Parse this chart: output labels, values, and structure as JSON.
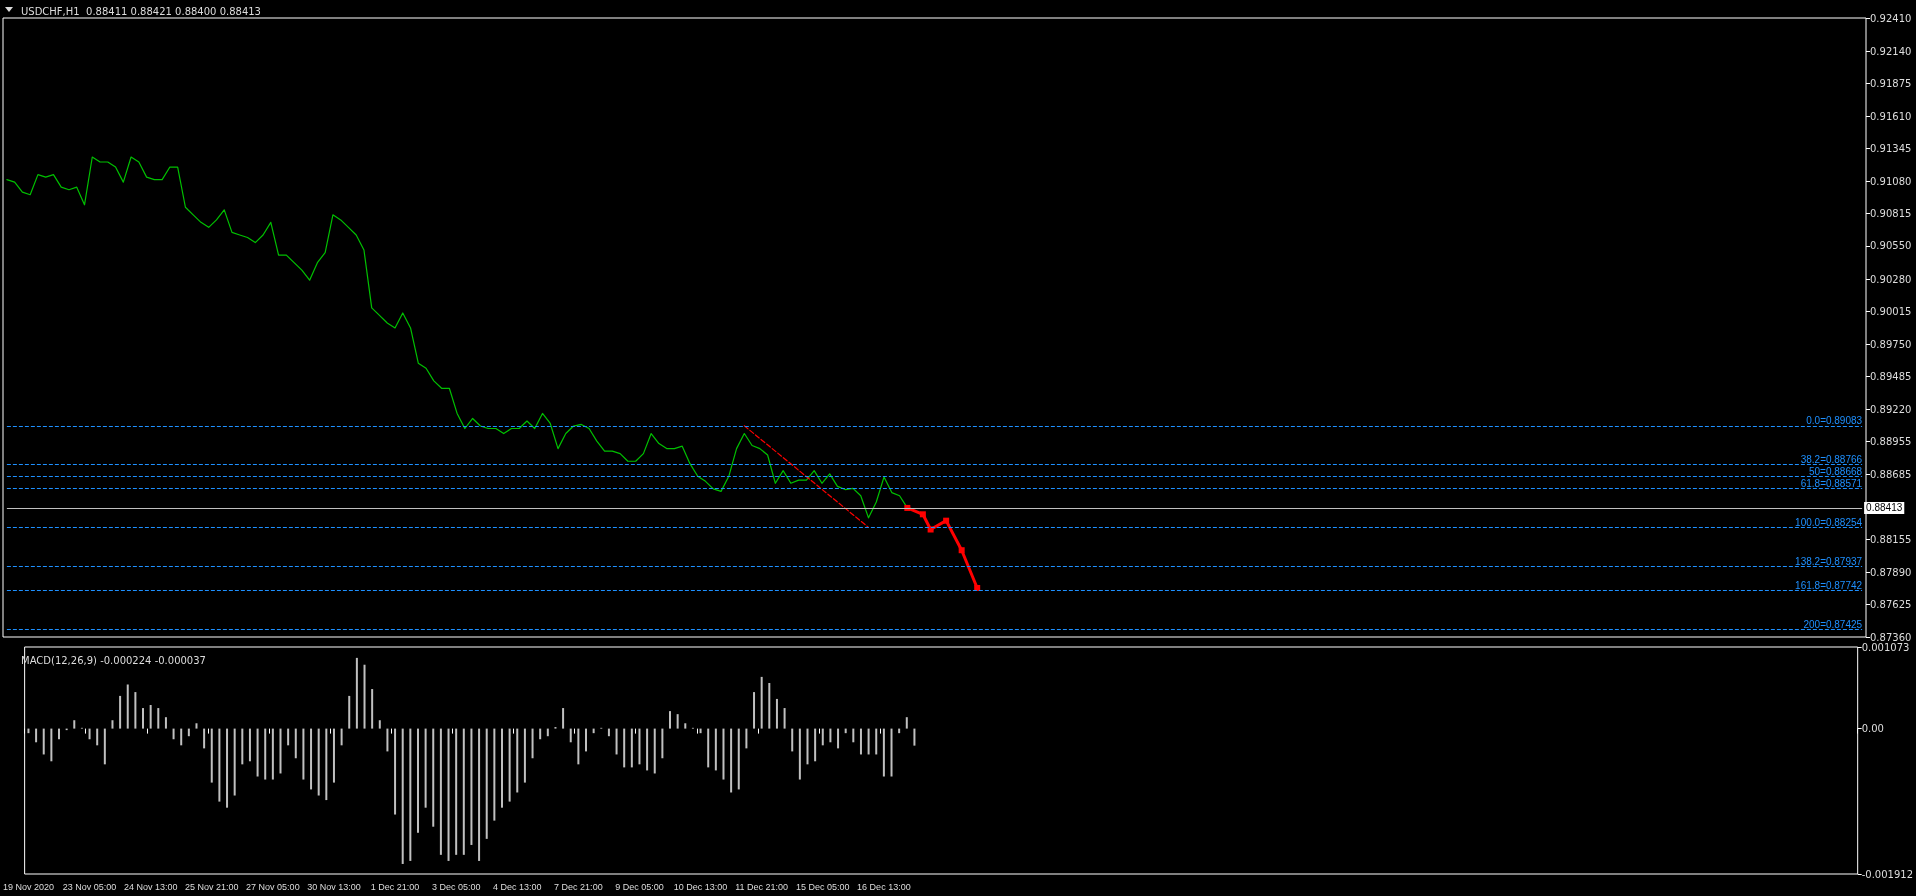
{
  "chart_data": [
    {
      "type": "line",
      "title": "USDCHF,H1  0.88411 0.88421 0.88400 0.88413",
      "tick_labels": "y",
      "marker": "none",
      "line_style": "solid",
      "categories": [
        null,
        null,
        null,
        null,
        null,
        null,
        null,
        null,
        null,
        null,
        null,
        null,
        null,
        null,
        null,
        null,
        null,
        null,
        null,
        null,
        null,
        null,
        null,
        null,
        null,
        null,
        null,
        null,
        null,
        null,
        null,
        null,
        null,
        null,
        null,
        null,
        null,
        null,
        null,
        null,
        null,
        null,
        null,
        null,
        null,
        null,
        null,
        null,
        null,
        null,
        null,
        null,
        null,
        null,
        null,
        null,
        null,
        null,
        null,
        null,
        null,
        null,
        null,
        null,
        null,
        null,
        null,
        null,
        null,
        null,
        null,
        null,
        null,
        null,
        null,
        null,
        null,
        null,
        null,
        null,
        null,
        null,
        null,
        null,
        null,
        null,
        null,
        null,
        null,
        null,
        null,
        null,
        null,
        null,
        null,
        null,
        null,
        null,
        null,
        null,
        null,
        null,
        null,
        null,
        null,
        null,
        null,
        null,
        null,
        null,
        null,
        null,
        null,
        null,
        null,
        null,
        null,
        null,
        null,
        null,
        null,
        null,
        null,
        null,
        null,
        null,
        null,
        null,
        null,
        null,
        null,
        null,
        null,
        null,
        null,
        null,
        null,
        null,
        null,
        null,
        null,
        null,
        null,
        null,
        null,
        null,
        null,
        null,
        null,
        null,
        null,
        null,
        null,
        null,
        null,
        null,
        null,
        null,
        null,
        null,
        null,
        null,
        null,
        null,
        null,
        null,
        null,
        null,
        null,
        null,
        null,
        null,
        null,
        null,
        null,
        null,
        null,
        null,
        null,
        null,
        null,
        null,
        null,
        null,
        null,
        null,
        null,
        null,
        null,
        null,
        null,
        null,
        null,
        null,
        null,
        null,
        null,
        null,
        null,
        null,
        null,
        null,
        null,
        null,
        null,
        null,
        null,
        null,
        null,
        null,
        null,
        null,
        null,
        null,
        null,
        null,
        null,
        null,
        null,
        null,
        null,
        null,
        null,
        null,
        null,
        null,
        null,
        null,
        null,
        null,
        null,
        null,
        null,
        null,
        null,
        null,
        null,
        null,
        null,
        null
      ],
      "series": [
        {
          "color": "#00c000",
          "values": [
            0.91091,
            0.91071,
            0.90989,
            0.90968,
            0.91132,
            0.91112,
            0.91132,
            0.9103,
            0.91009,
            0.9103,
            0.90886,
            0.91276,
            0.91235,
            0.91235,
            0.91194,
            0.91071,
            0.91276,
            0.91235,
            0.91112,
            0.91091,
            0.91091,
            0.91194,
            0.91194,
            0.90866,
            0.90804,
            0.90743,
            0.90702,
            0.90763,
            0.90845,
            0.90661,
            0.9064,
            0.90619,
            0.90578,
            0.9064,
            0.90743,
            0.90476,
            0.90476,
            0.90414,
            0.90353,
            0.90271,
            0.90414,
            0.90496,
            0.90804,
            0.90763,
            0.90702,
            0.9064,
            0.90517,
            0.90045,
            0.89984,
            0.89922,
            0.89881,
            0.90004,
            0.89881,
            0.89594,
            0.89553,
            0.8945,
            0.89389,
            0.89389,
            0.89184,
            0.89061,
            0.89143,
            0.89081,
            0.89061,
            0.89061,
            0.8902,
            0.89061,
            0.89061,
            0.89122,
            0.89061,
            0.89184,
            0.89102,
            0.88897,
            0.8902,
            0.89081,
            0.89094,
            0.89061,
            0.88958,
            0.88876,
            0.88876,
            0.88856,
            0.88794,
            0.88794,
            0.88856,
            0.8902,
            0.88938,
            0.88897,
            0.88897,
            0.88917,
            0.88774,
            0.88671,
            0.8863,
            0.88568,
            0.88548,
            0.88671,
            0.88897,
            0.8902,
            0.88922,
            0.88897,
            0.88845,
            0.88614,
            0.88717,
            0.88614,
            0.8864,
            0.8864,
            0.88717,
            0.88614,
            0.88691,
            0.88589,
            0.88563,
            0.88573,
            0.88512,
            0.88332,
            0.88461,
            0.88666,
            0.88538,
            0.88512,
            0.88413,
            null,
            null,
            null,
            null,
            null,
            null,
            null,
            null,
            null,
            null,
            null,
            null,
            null,
            null,
            null,
            null,
            null,
            null,
            null,
            null,
            null,
            null,
            null,
            null,
            null,
            null,
            null,
            null,
            null,
            null,
            null,
            null,
            null,
            null,
            null,
            null,
            null,
            null,
            null,
            null,
            null,
            null,
            null,
            null,
            null,
            null,
            null,
            null,
            null,
            null,
            null,
            null,
            null,
            null,
            null,
            null,
            null,
            null,
            null,
            null,
            null,
            null,
            null,
            null,
            null,
            null,
            null,
            null,
            null,
            null,
            null,
            null,
            null,
            null,
            null,
            null,
            null,
            null,
            null,
            null,
            null,
            null,
            null,
            null,
            null,
            null,
            null,
            null,
            null,
            null,
            null,
            null,
            null,
            null,
            null,
            null,
            null,
            null,
            null,
            null,
            null,
            null,
            null,
            null,
            null,
            null,
            null,
            null,
            null,
            null,
            null,
            null,
            null,
            null,
            null,
            null,
            null,
            null,
            null,
            null,
            null,
            null,
            null
          ]
        },
        {
          "color": "#ff0000",
          "line_style": "dashed",
          "values": [
            null,
            null,
            null,
            null,
            null,
            null,
            null,
            null,
            null,
            null,
            null,
            null,
            null,
            null,
            null,
            null,
            null,
            null,
            null,
            null,
            null,
            null,
            null,
            null,
            null,
            null,
            null,
            null,
            null,
            null,
            null,
            null,
            null,
            null,
            null,
            null,
            null,
            null,
            null,
            null,
            null,
            null,
            null,
            null,
            null,
            null,
            null,
            null,
            null,
            null,
            null,
            null,
            null,
            null,
            null,
            null,
            null,
            null,
            null,
            null,
            null,
            null,
            null,
            null,
            null,
            null,
            null,
            null,
            null,
            null,
            null,
            null,
            null,
            null,
            null,
            null,
            null,
            null,
            null,
            null,
            null,
            null,
            null,
            null,
            null,
            null,
            null,
            null,
            null,
            null,
            null,
            null,
            null,
            null,
            null,
            0.89083,
            null,
            null,
            null,
            null,
            null,
            null,
            null,
            null,
            null,
            null,
            null,
            null,
            null,
            null,
            null,
            0.88254,
            null,
            null,
            null,
            null,
            null,
            null,
            null,
            null,
            null,
            null,
            null,
            null,
            null,
            null,
            null,
            null,
            null,
            null,
            null,
            null,
            null,
            null,
            null,
            null,
            null,
            null,
            null,
            null,
            null,
            null,
            null,
            null,
            null,
            null,
            null,
            null,
            null,
            null,
            null,
            null,
            null,
            null,
            null,
            null,
            null,
            null,
            null,
            null,
            null,
            null,
            null,
            null,
            null,
            null,
            null,
            null,
            null,
            null,
            null,
            null,
            null,
            null,
            null,
            null,
            null,
            null,
            null,
            null,
            null,
            null,
            null,
            null,
            null,
            null,
            null,
            null,
            null,
            null,
            null,
            null,
            null,
            null,
            null,
            null,
            null,
            null,
            null,
            null,
            null,
            null,
            null,
            null,
            null,
            null,
            null,
            null,
            null,
            null,
            null,
            null,
            null,
            null,
            null,
            null,
            null,
            null,
            null,
            null,
            null,
            null,
            null,
            null,
            null,
            null,
            null,
            null,
            null,
            null,
            null,
            null,
            null,
            null,
            null,
            null,
            null,
            null,
            null,
            null
          ]
        },
        {
          "color": "#ff0000",
          "marker": "square",
          "values": [
            null,
            null,
            null,
            null,
            null,
            null,
            null,
            null,
            null,
            null,
            null,
            null,
            null,
            null,
            null,
            null,
            null,
            null,
            null,
            null,
            null,
            null,
            null,
            null,
            null,
            null,
            null,
            null,
            null,
            null,
            null,
            null,
            null,
            null,
            null,
            null,
            null,
            null,
            null,
            null,
            null,
            null,
            null,
            null,
            null,
            null,
            null,
            null,
            null,
            null,
            null,
            null,
            null,
            null,
            null,
            null,
            null,
            null,
            null,
            null,
            null,
            null,
            null,
            null,
            null,
            null,
            null,
            null,
            null,
            null,
            null,
            null,
            null,
            null,
            null,
            null,
            null,
            null,
            null,
            null,
            null,
            null,
            null,
            null,
            null,
            null,
            null,
            null,
            null,
            null,
            null,
            null,
            null,
            null,
            null,
            null,
            null,
            null,
            null,
            null,
            null,
            null,
            null,
            null,
            null,
            null,
            null,
            null,
            null,
            null,
            null,
            null,
            null,
            null,
            null,
            null,
            0.88413,
            null,
            0.88361,
            0.88237,
            null,
            0.88309,
            null,
            0.88068,
            null,
            0.8776,
            null,
            null,
            null,
            null,
            null,
            null,
            null,
            null,
            null,
            null,
            null,
            null,
            null,
            null,
            null,
            null,
            null,
            null,
            null,
            null,
            null,
            null,
            null,
            null,
            null,
            null,
            null,
            null,
            null,
            null,
            null,
            null,
            null,
            null,
            null,
            null,
            null,
            null,
            null,
            null,
            null,
            null,
            null,
            null,
            null,
            null,
            null,
            null,
            null,
            null,
            null,
            null,
            null,
            null,
            null,
            null,
            null,
            null,
            null,
            null,
            null,
            null,
            null,
            null,
            null,
            null,
            null,
            null,
            null,
            null,
            null,
            null,
            null,
            null,
            null,
            null,
            null,
            null,
            null,
            null,
            null,
            null,
            null,
            null,
            null,
            null,
            null,
            null,
            null,
            null,
            null,
            null,
            null,
            null,
            null,
            null,
            null,
            null,
            null,
            null,
            null,
            null,
            null,
            null,
            null,
            null,
            null,
            null,
            null,
            null,
            null,
            null,
            null,
            null
          ]
        }
      ],
      "ylim": [
        0.8736,
        0.9241
      ],
      "yticks": [
        {
          "value": 0.9241,
          "label": "0.92410"
        },
        {
          "value": 0.9214,
          "label": "0.92140"
        },
        {
          "value": 0.91875,
          "label": "0.91875"
        },
        {
          "value": 0.9161,
          "label": "0.91610"
        },
        {
          "value": 0.91345,
          "label": "0.91345"
        },
        {
          "value": 0.9108,
          "label": "0.91080"
        },
        {
          "value": 0.90815,
          "label": "0.90815"
        },
        {
          "value": 0.9055,
          "label": "0.90550"
        },
        {
          "value": 0.9028,
          "label": "0.90280"
        },
        {
          "value": 0.90015,
          "label": "0.90015"
        },
        {
          "value": 0.8975,
          "label": "0.89750"
        },
        {
          "value": 0.89485,
          "label": "0.89485"
        },
        {
          "value": 0.8922,
          "label": "0.89220"
        },
        {
          "value": 0.88955,
          "label": "0.88955"
        },
        {
          "value": 0.88685,
          "label": "0.88685"
        },
        {
          "value": 0.88155,
          "label": "0.88155"
        },
        {
          "value": 0.8789,
          "label": "0.87890"
        },
        {
          "value": 0.87625,
          "label": "0.87625"
        },
        {
          "value": 0.8736,
          "label": "0.87360"
        }
      ],
      "ref_lines": [
        {
          "axis": "y",
          "value": 0.89083,
          "label": "0.0=0.89083",
          "color": "#1e90ff",
          "line_style": "dashed"
        },
        {
          "axis": "y",
          "value": 0.88766,
          "label": "38.2=0.88766",
          "color": "#1e90ff",
          "line_style": "dashed"
        },
        {
          "axis": "y",
          "value": 0.88668,
          "label": "50=0.88668",
          "color": "#1e90ff",
          "line_style": "dashed"
        },
        {
          "axis": "y",
          "value": 0.88571,
          "label": "61.8=0.88571",
          "color": "#1e90ff",
          "line_style": "dashed"
        },
        {
          "axis": "y",
          "value": 0.88254,
          "label": "100.0=0.88254",
          "color": "#1e90ff",
          "line_style": "dashed"
        },
        {
          "axis": "y",
          "value": 0.87937,
          "label": "138.2=0.87937",
          "color": "#1e90ff",
          "line_style": "dashed"
        },
        {
          "axis": "y",
          "value": 0.87742,
          "label": "161.8=0.87742",
          "color": "#1e90ff",
          "line_style": "dashed"
        },
        {
          "axis": "y",
          "value": 0.87425,
          "label": "200=0.87425",
          "color": "#1e90ff",
          "line_style": "dashed"
        },
        {
          "axis": "y",
          "value": 0.88413,
          "label": "0.88413",
          "color": "#c0c0c0",
          "line_style": "solid"
        }
      ]
    },
    {
      "type": "bar",
      "title": "MACD(12,26,9) -0.000224 -0.000037",
      "categories": [
        "19 Nov 2020",
        null,
        null,
        null,
        null,
        null,
        null,
        null,
        "23 Nov 05:00",
        null,
        null,
        null,
        null,
        null,
        null,
        null,
        "24 Nov 13:00",
        null,
        null,
        null,
        null,
        null,
        null,
        null,
        "25 Nov 21:00",
        null,
        null,
        null,
        null,
        null,
        null,
        null,
        "27 Nov 05:00",
        null,
        null,
        null,
        null,
        null,
        null,
        null,
        "30 Nov 13:00",
        null,
        null,
        null,
        null,
        null,
        null,
        null,
        "1 Dec 21:00",
        null,
        null,
        null,
        null,
        null,
        null,
        null,
        "3 Dec 05:00",
        null,
        null,
        null,
        null,
        null,
        null,
        null,
        "4 Dec 13:00",
        null,
        null,
        null,
        null,
        null,
        null,
        null,
        "7 Dec 21:00",
        null,
        null,
        null,
        null,
        null,
        null,
        null,
        "9 Dec 05:00",
        null,
        null,
        null,
        null,
        null,
        null,
        null,
        "10 Dec 13:00",
        null,
        null,
        null,
        null,
        null,
        null,
        null,
        "11 Dec 21:00",
        null,
        null,
        null,
        null,
        null,
        null,
        null,
        "15 Dec 05:00",
        null,
        null,
        null,
        null,
        null,
        null,
        null,
        "16 Dec 13:00",
        null,
        null,
        null,
        null,
        null,
        null,
        null,
        null,
        null,
        null,
        null,
        null,
        null,
        null,
        null,
        null,
        null,
        null,
        null,
        null,
        null,
        null,
        null,
        null,
        null,
        null,
        null,
        null,
        null,
        null,
        null,
        null,
        null,
        null,
        null,
        null,
        null,
        null,
        null,
        null,
        null,
        null,
        null,
        null,
        null,
        null,
        null,
        null,
        null,
        null,
        null,
        null,
        null,
        null,
        null,
        null,
        null,
        null,
        null,
        null,
        null,
        null,
        null,
        null,
        null,
        null,
        null,
        null,
        null,
        null,
        null,
        null,
        null,
        null,
        null,
        null,
        null,
        null,
        null,
        null,
        null,
        null,
        null,
        null,
        null,
        null,
        null,
        null,
        null,
        null,
        null,
        null,
        null,
        null,
        null,
        null,
        null,
        null,
        null,
        null,
        null,
        null,
        null,
        null,
        null,
        null,
        null,
        null,
        null,
        null,
        null,
        null,
        null,
        null,
        null,
        null,
        null,
        null,
        null,
        null,
        null,
        null,
        null,
        null,
        null,
        null,
        null
      ],
      "series": [
        {
          "color": "#c0c0c0",
          "values": [
            -6e-05,
            -0.00018,
            -0.00034,
            -0.00043,
            -0.00014,
            -2e-05,
            0.00011,
            1e-05,
            -0.00014,
            -0.00022,
            -0.00047,
            0.00011,
            0.00043,
            0.00058,
            0.00048,
            0.00027,
            0.00031,
            0.00027,
            0.00015,
            -0.00014,
            -0.00022,
            -0.0001,
            7e-05,
            -0.00026,
            -0.00071,
            -0.00096,
            -0.00104,
            -0.00088,
            -0.00047,
            -0.00043,
            -0.00063,
            -0.00067,
            -0.00067,
            -0.00059,
            -0.00022,
            -0.00039,
            -0.00067,
            -0.0008,
            -0.00088,
            -0.00094,
            -0.00071,
            -0.00022,
            0.00043,
            0.00093,
            0.00084,
            0.00052,
            0.00011,
            -0.0003,
            -0.00113,
            -0.00178,
            -0.00174,
            -0.00137,
            -0.00104,
            -0.00129,
            -0.00166,
            -0.00174,
            -0.00166,
            -0.00166,
            -0.00153,
            -0.00174,
            -0.00145,
            -0.00121,
            -0.00104,
            -0.00096,
            -0.00084,
            -0.00071,
            -0.00039,
            -0.00014,
            -0.0001,
            2e-05,
            0.00027,
            -0.00018,
            -0.00047,
            -0.0003,
            -6e-05,
            1e-05,
            -0.0001,
            -0.00034,
            -0.00051,
            -0.00051,
            -0.00047,
            -0.00055,
            -0.00059,
            -0.00039,
            0.00023,
            0.00019,
            7e-05,
            1e-05,
            -6e-05,
            -0.00051,
            -0.00055,
            -0.00067,
            -0.00084,
            -0.0008,
            -0.00026,
            0.00048,
            0.00068,
            0.0006,
            0.00039,
            0.00027,
            -0.0003,
            -0.00067,
            -0.00047,
            -0.00043,
            -0.00022,
            -0.00018,
            -0.00026,
            -6e-05,
            -0.00018,
            -0.00034,
            -0.00034,
            -0.00034,
            -0.00063,
            -0.00063,
            -6e-05,
            0.00015,
            -0.000224,
            null,
            null,
            null,
            null,
            null,
            null,
            null,
            null,
            null,
            null,
            null,
            null,
            null,
            null,
            null,
            null,
            null,
            null,
            null,
            null,
            null,
            null,
            null,
            null,
            null,
            null,
            null,
            null,
            null,
            null,
            null,
            null,
            null,
            null,
            null,
            null,
            null,
            null,
            null,
            null,
            null,
            null,
            null,
            null,
            null,
            null,
            null,
            null,
            null,
            null,
            null,
            null,
            null,
            null,
            null,
            null,
            null,
            null,
            null,
            null,
            null,
            null,
            null,
            null,
            null,
            null,
            null,
            null,
            null,
            null,
            null,
            null,
            null,
            null,
            null,
            null,
            null,
            null,
            null,
            null,
            null,
            null,
            null,
            null,
            null,
            null,
            null,
            null,
            null,
            null,
            null,
            null,
            null,
            null,
            null,
            null,
            null,
            null,
            null,
            null,
            null,
            null,
            null,
            null,
            null,
            null,
            null,
            null,
            null,
            null,
            null,
            null,
            null,
            null,
            null,
            null,
            null,
            null,
            null,
            null,
            null,
            null,
            null
          ]
        }
      ],
      "ylim": [
        -0.001912,
        0.001073
      ],
      "yticks": [
        {
          "value": 0.001073,
          "label": "0.001073"
        },
        {
          "value": 0,
          "label": "0.00"
        },
        {
          "value": -0.001912,
          "label": "-0.001912"
        }
      ]
    }
  ]
}
